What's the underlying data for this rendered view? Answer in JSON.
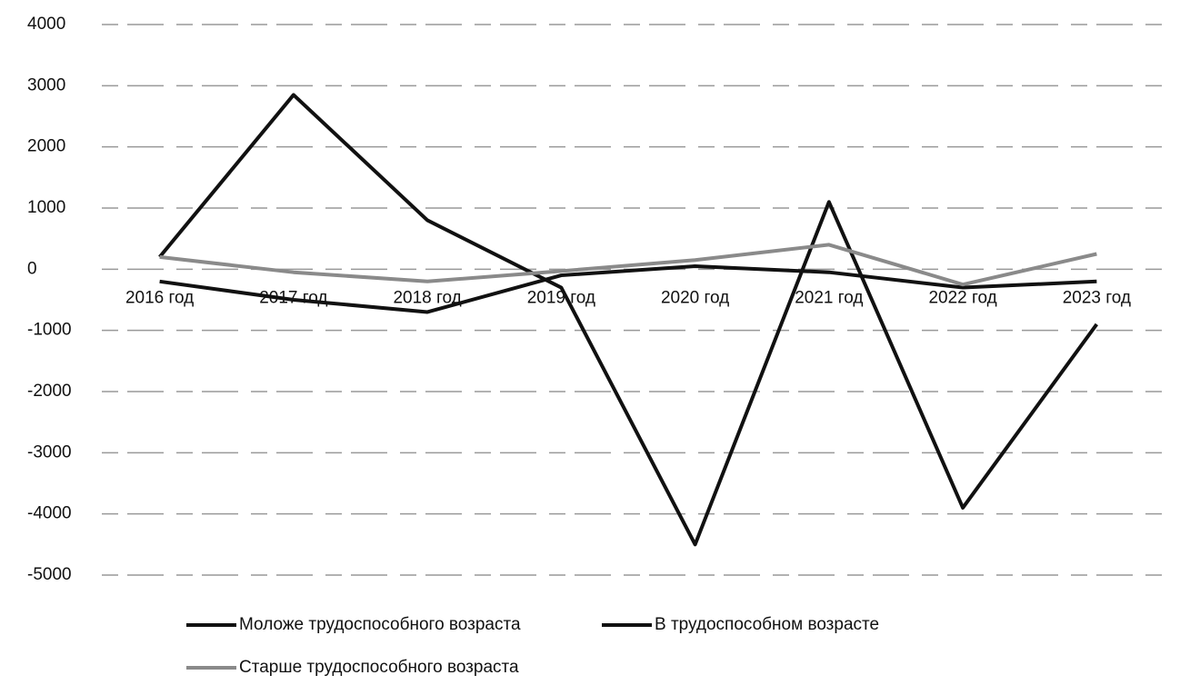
{
  "chart_data": {
    "type": "line",
    "categories": [
      "2016 год",
      "2017 год",
      "2018 год",
      "2019 год",
      "2020 год",
      "2021 год",
      "2022 год",
      "2023 год"
    ],
    "series": [
      {
        "name": "Моложе трудоспособного возраста",
        "color": "#111111",
        "values": [
          -200,
          -500,
          -700,
          -100,
          50,
          -50,
          -300,
          -200
        ]
      },
      {
        "name": "В трудоспособном возрасте",
        "color": "#111111",
        "values": [
          200,
          2850,
          800,
          -300,
          -4500,
          1100,
          -3900,
          -900
        ]
      },
      {
        "name": "Старше трудоспособного возраста",
        "color": "#8a8a8a",
        "values": [
          200,
          -50,
          -200,
          -30,
          150,
          400,
          -250,
          250
        ]
      }
    ],
    "ylim": [
      -5000,
      4000
    ],
    "yticks": [
      -5000,
      -4000,
      -3000,
      -2000,
      -1000,
      0,
      1000,
      2000,
      3000,
      4000
    ],
    "grid": true,
    "legend": "bottom"
  }
}
